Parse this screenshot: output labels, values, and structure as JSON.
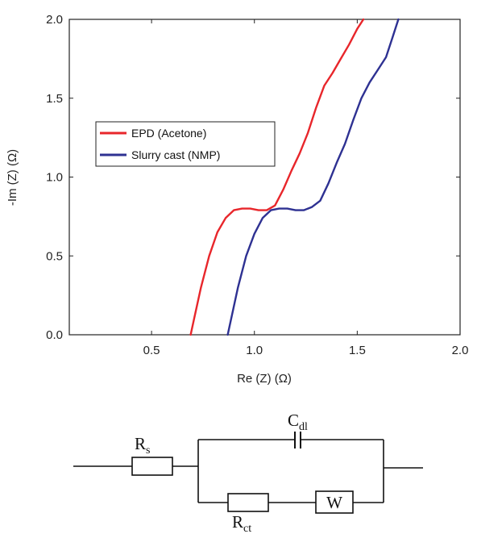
{
  "chart_data": {
    "type": "line",
    "title": "",
    "xlabel": "Re (Z) (Ω)",
    "ylabel": "-Im (Z) (Ω)",
    "xlim": [
      0.1,
      2.0
    ],
    "ylim": [
      0.0,
      2.0
    ],
    "xticks": [
      0.5,
      1.0,
      1.5,
      2.0
    ],
    "xtick_labels": [
      "0.5",
      "1.0",
      "1.5",
      "2.0"
    ],
    "yticks": [
      0.0,
      0.5,
      1.0,
      1.5,
      2.0
    ],
    "ytick_labels": [
      "0.0",
      "0.5",
      "1.0",
      "1.5",
      "2.0"
    ],
    "grid": false,
    "legend_position": "middle-left",
    "series": [
      {
        "name": "EPD (Acetone)",
        "color": "#e8262b",
        "x": [
          0.69,
          0.71,
          0.74,
          0.78,
          0.82,
          0.86,
          0.9,
          0.94,
          0.98,
          1.02,
          1.06,
          1.1,
          1.14,
          1.18,
          1.22,
          1.26,
          1.3,
          1.34,
          1.38,
          1.42,
          1.46,
          1.5,
          1.53
        ],
        "y": [
          0.0,
          0.12,
          0.3,
          0.5,
          0.65,
          0.74,
          0.79,
          0.8,
          0.8,
          0.79,
          0.79,
          0.82,
          0.92,
          1.04,
          1.15,
          1.28,
          1.44,
          1.58,
          1.66,
          1.75,
          1.84,
          1.94,
          2.0
        ]
      },
      {
        "name": "Slurry cast (NMP)",
        "color": "#2e3192",
        "x": [
          0.87,
          0.89,
          0.92,
          0.96,
          1.0,
          1.04,
          1.08,
          1.12,
          1.16,
          1.2,
          1.24,
          1.28,
          1.32,
          1.36,
          1.4,
          1.44,
          1.48,
          1.52,
          1.56,
          1.6,
          1.64,
          1.67,
          1.7
        ],
        "y": [
          0.0,
          0.12,
          0.3,
          0.5,
          0.64,
          0.74,
          0.79,
          0.8,
          0.8,
          0.79,
          0.79,
          0.81,
          0.85,
          0.96,
          1.09,
          1.21,
          1.36,
          1.5,
          1.6,
          1.68,
          1.76,
          1.88,
          2.0
        ]
      }
    ]
  },
  "circuit": {
    "rs_main": "R",
    "rs_sub": "s",
    "cdl_main": "C",
    "cdl_sub": "dl",
    "rct_main": "R",
    "rct_sub": "ct",
    "w_label": "W"
  }
}
